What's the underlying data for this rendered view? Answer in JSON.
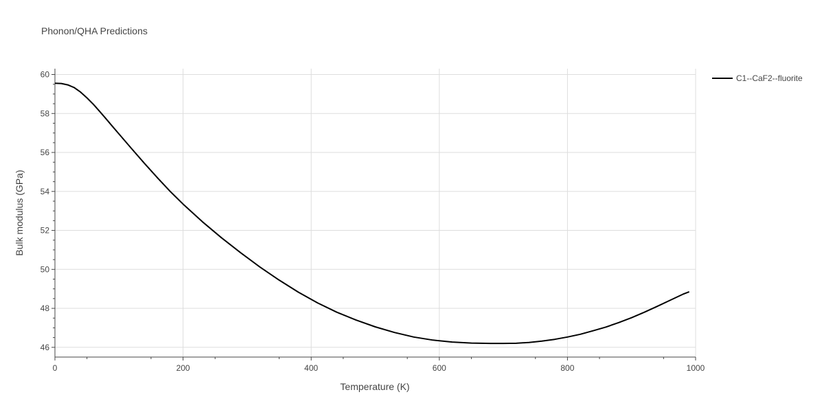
{
  "chart_data": {
    "type": "line",
    "title": "Phonon/QHA Predictions",
    "xlabel": "Temperature (K)",
    "ylabel": "Bulk modulus (GPa)",
    "xlim": [
      0,
      1000
    ],
    "ylim": [
      45.5,
      60.3
    ],
    "x_ticks": [
      0,
      200,
      400,
      600,
      800,
      1000
    ],
    "y_ticks": [
      46,
      48,
      50,
      52,
      54,
      56,
      58,
      60
    ],
    "grid": true,
    "legend_position": "top-right",
    "colors": {
      "series": "#000000",
      "grid": "#dddddd",
      "text": "#444444"
    },
    "series": [
      {
        "name": "C1--CaF2--fluorite",
        "x": [
          0,
          10,
          20,
          30,
          40,
          50,
          60,
          70,
          80,
          90,
          100,
          120,
          140,
          160,
          180,
          200,
          230,
          260,
          290,
          320,
          350,
          380,
          410,
          440,
          470,
          500,
          530,
          560,
          590,
          620,
          650,
          680,
          700,
          720,
          740,
          760,
          780,
          800,
          820,
          840,
          860,
          880,
          900,
          920,
          940,
          960,
          980,
          990
        ],
        "y": [
          59.55,
          59.54,
          59.47,
          59.33,
          59.1,
          58.8,
          58.47,
          58.1,
          57.72,
          57.33,
          56.95,
          56.18,
          55.43,
          54.7,
          54.0,
          53.35,
          52.45,
          51.62,
          50.85,
          50.12,
          49.45,
          48.83,
          48.28,
          47.8,
          47.4,
          47.05,
          46.76,
          46.53,
          46.37,
          46.27,
          46.22,
          46.2,
          46.2,
          46.21,
          46.25,
          46.32,
          46.41,
          46.53,
          46.67,
          46.85,
          47.04,
          47.27,
          47.52,
          47.8,
          48.1,
          48.41,
          48.72,
          48.85
        ]
      }
    ]
  }
}
